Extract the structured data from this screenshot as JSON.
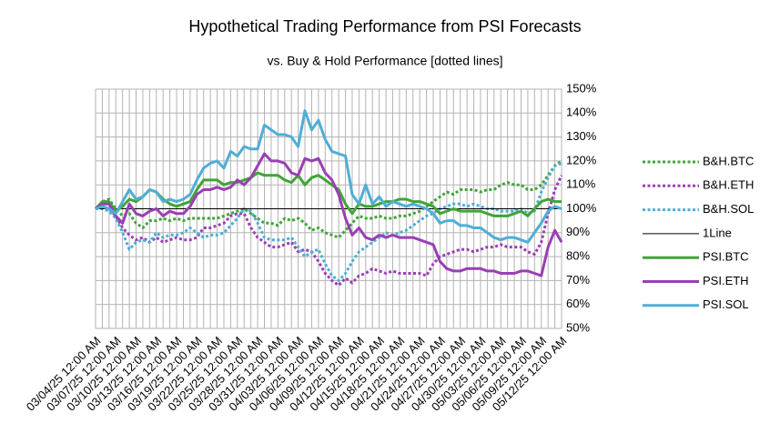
{
  "chart_data": {
    "type": "line",
    "title": "Hypothetical Trading Performance from PSI Forecasts",
    "subtitle": "vs. Buy & Hold Performance [dotted lines]",
    "categories": [
      "03/04/25 12:00 AM",
      null,
      null,
      "03/07/25 12:00 AM",
      null,
      null,
      "03/10/25 12:00 AM",
      null,
      null,
      "03/13/25 12:00 AM",
      null,
      null,
      "03/16/25 12:00 AM",
      null,
      null,
      "03/19/25 12:00 AM",
      null,
      null,
      "03/22/25 12:00 AM",
      null,
      null,
      "03/25/25 12:00 AM",
      null,
      null,
      "03/28/25 12:00 AM",
      null,
      null,
      "03/31/25 12:00 AM",
      null,
      null,
      "04/03/25 12:00 AM",
      null,
      null,
      "04/06/25 12:00 AM",
      null,
      null,
      "04/09/25 12:00 AM",
      null,
      null,
      "04/12/25 12:00 AM",
      null,
      null,
      "04/15/25 12:00 AM",
      null,
      null,
      "04/18/25 12:00 AM",
      null,
      null,
      "04/21/25 12:00 AM",
      null,
      null,
      "04/24/25 12:00 AM",
      null,
      null,
      "04/27/25 12:00 AM",
      null,
      null,
      "04/30/25 12:00 AM",
      null,
      null,
      "05/03/25 12:00 AM",
      null,
      null,
      "05/06/25 12:00 AM",
      null,
      null,
      "05/09/25 12:00 AM",
      null,
      null,
      "05/12/25 12:00 AM"
    ],
    "ylim": [
      50,
      150
    ],
    "yticks": [
      {
        "value": 50,
        "label": "50%"
      },
      {
        "value": 60,
        "label": "60%"
      },
      {
        "value": 70,
        "label": "70%"
      },
      {
        "value": 80,
        "label": "80%"
      },
      {
        "value": 90,
        "label": "90%"
      },
      {
        "value": 100,
        "label": "100%"
      },
      {
        "value": 110,
        "label": "110%"
      },
      {
        "value": 120,
        "label": "120%"
      },
      {
        "value": 130,
        "label": "130%"
      },
      {
        "value": 140,
        "label": "140%"
      },
      {
        "value": 150,
        "label": "150%"
      }
    ],
    "grid": true,
    "legend": "right",
    "series": [
      {
        "name": "B&H.BTC",
        "color": "#3fa535",
        "dashed": true,
        "values": [
          100,
          103,
          104,
          100,
          97,
          98,
          94,
          92,
          95,
          95,
          96,
          95,
          96,
          95,
          96,
          96,
          96,
          96,
          96,
          97,
          98,
          99,
          100,
          98,
          96,
          94,
          94,
          93,
          96,
          95,
          96,
          94,
          91,
          92,
          90,
          89,
          88,
          91,
          94,
          97,
          96,
          96,
          97,
          96,
          96,
          97,
          97,
          98,
          99,
          101,
          103,
          105,
          107,
          106,
          108,
          108,
          108,
          107,
          108,
          108,
          110,
          111,
          110,
          110,
          108,
          108,
          110,
          114,
          118,
          120
        ]
      },
      {
        "name": "B&H.ETH",
        "color": "#9a3fb4",
        "dashed": true,
        "values": [
          100,
          101,
          100,
          97,
          92,
          89,
          87,
          88,
          86,
          88,
          86,
          87,
          88,
          87,
          87,
          88,
          92,
          92,
          93,
          94,
          97,
          98,
          98,
          92,
          88,
          86,
          84,
          84,
          85,
          86,
          82,
          83,
          82,
          78,
          73,
          70,
          68,
          71,
          69,
          72,
          73,
          75,
          74,
          73,
          74,
          73,
          73,
          73,
          73,
          72,
          77,
          80,
          81,
          82,
          83,
          83,
          82,
          83,
          84,
          84,
          85,
          84,
          84,
          84,
          82,
          81,
          86,
          98,
          108,
          114
        ]
      },
      {
        "name": "B&H.SOL",
        "color": "#4eaed6",
        "dashed": true,
        "values": [
          100,
          100,
          99,
          96,
          90,
          83,
          86,
          87,
          86,
          90,
          88,
          89,
          89,
          90,
          92,
          90,
          88,
          89,
          89,
          90,
          93,
          96,
          100,
          99,
          94,
          88,
          87,
          87,
          87,
          88,
          84,
          80,
          82,
          83,
          77,
          72,
          70,
          73,
          78,
          82,
          84,
          86,
          88,
          90,
          89,
          90,
          91,
          93,
          95,
          97,
          98,
          100,
          101,
          102,
          102,
          101,
          102,
          101,
          100,
          100,
          99,
          99,
          99,
          100,
          98,
          99,
          107,
          113,
          118,
          119
        ]
      },
      {
        "name": "1Line",
        "color": "#000000",
        "dashed": false,
        "thin": true,
        "values": [
          100,
          100,
          100,
          100,
          100,
          100,
          100,
          100,
          100,
          100,
          100,
          100,
          100,
          100,
          100,
          100,
          100,
          100,
          100,
          100,
          100,
          100,
          100,
          100,
          100,
          100,
          100,
          100,
          100,
          100,
          100,
          100,
          100,
          100,
          100,
          100,
          100,
          100,
          100,
          100,
          100,
          100,
          100,
          100,
          100,
          100,
          100,
          100,
          100,
          100,
          100,
          100,
          100,
          100,
          100,
          100,
          100,
          100,
          100,
          100,
          100,
          100,
          100,
          100,
          100,
          100,
          100,
          100,
          100,
          100
        ]
      },
      {
        "name": "PSI.BTC",
        "color": "#3fa535",
        "dashed": false,
        "values": [
          100,
          103,
          103,
          99,
          101,
          104,
          103,
          105,
          108,
          107,
          104,
          102,
          101,
          102,
          103,
          108,
          112,
          112,
          112,
          110,
          111,
          111,
          112,
          113,
          115,
          114,
          114,
          114,
          112,
          111,
          114,
          110,
          113,
          114,
          112,
          110,
          108,
          102,
          98,
          102,
          101,
          101,
          102,
          103,
          103,
          104,
          104,
          103,
          103,
          102,
          101,
          98,
          99,
          100,
          99,
          99,
          99,
          99,
          98,
          97,
          97,
          97,
          98,
          99,
          97,
          100,
          103,
          104,
          103,
          103
        ]
      },
      {
        "name": "PSI.ETH",
        "color": "#9a3fb4",
        "dashed": false,
        "values": [
          100,
          102,
          102,
          97,
          94,
          102,
          98,
          97,
          99,
          100,
          97,
          99,
          98,
          98,
          101,
          106,
          108,
          108,
          109,
          108,
          109,
          112,
          110,
          113,
          118,
          123,
          120,
          120,
          119,
          115,
          114,
          121,
          120,
          121,
          115,
          112,
          106,
          96,
          89,
          92,
          88,
          87,
          89,
          88,
          89,
          88,
          88,
          88,
          87,
          86,
          85,
          78,
          75,
          74,
          74,
          75,
          75,
          75,
          74,
          74,
          73,
          73,
          73,
          74,
          74,
          73,
          72,
          84,
          91,
          86
        ]
      },
      {
        "name": "PSI.SOL",
        "color": "#4eaed6",
        "dashed": false,
        "values": [
          100,
          101,
          100,
          98,
          103,
          108,
          104,
          105,
          108,
          107,
          103,
          104,
          103,
          104,
          106,
          112,
          117,
          119,
          120,
          117,
          124,
          122,
          126,
          125,
          125,
          135,
          133,
          131,
          131,
          130,
          126,
          141,
          133,
          137,
          129,
          124,
          123,
          122,
          106,
          102,
          110,
          102,
          105,
          101,
          103,
          102,
          101,
          102,
          101,
          100,
          98,
          94,
          95,
          95,
          93,
          93,
          92,
          92,
          90,
          88,
          87,
          88,
          88,
          87,
          86,
          90,
          94,
          99,
          101,
          100
        ]
      }
    ]
  }
}
